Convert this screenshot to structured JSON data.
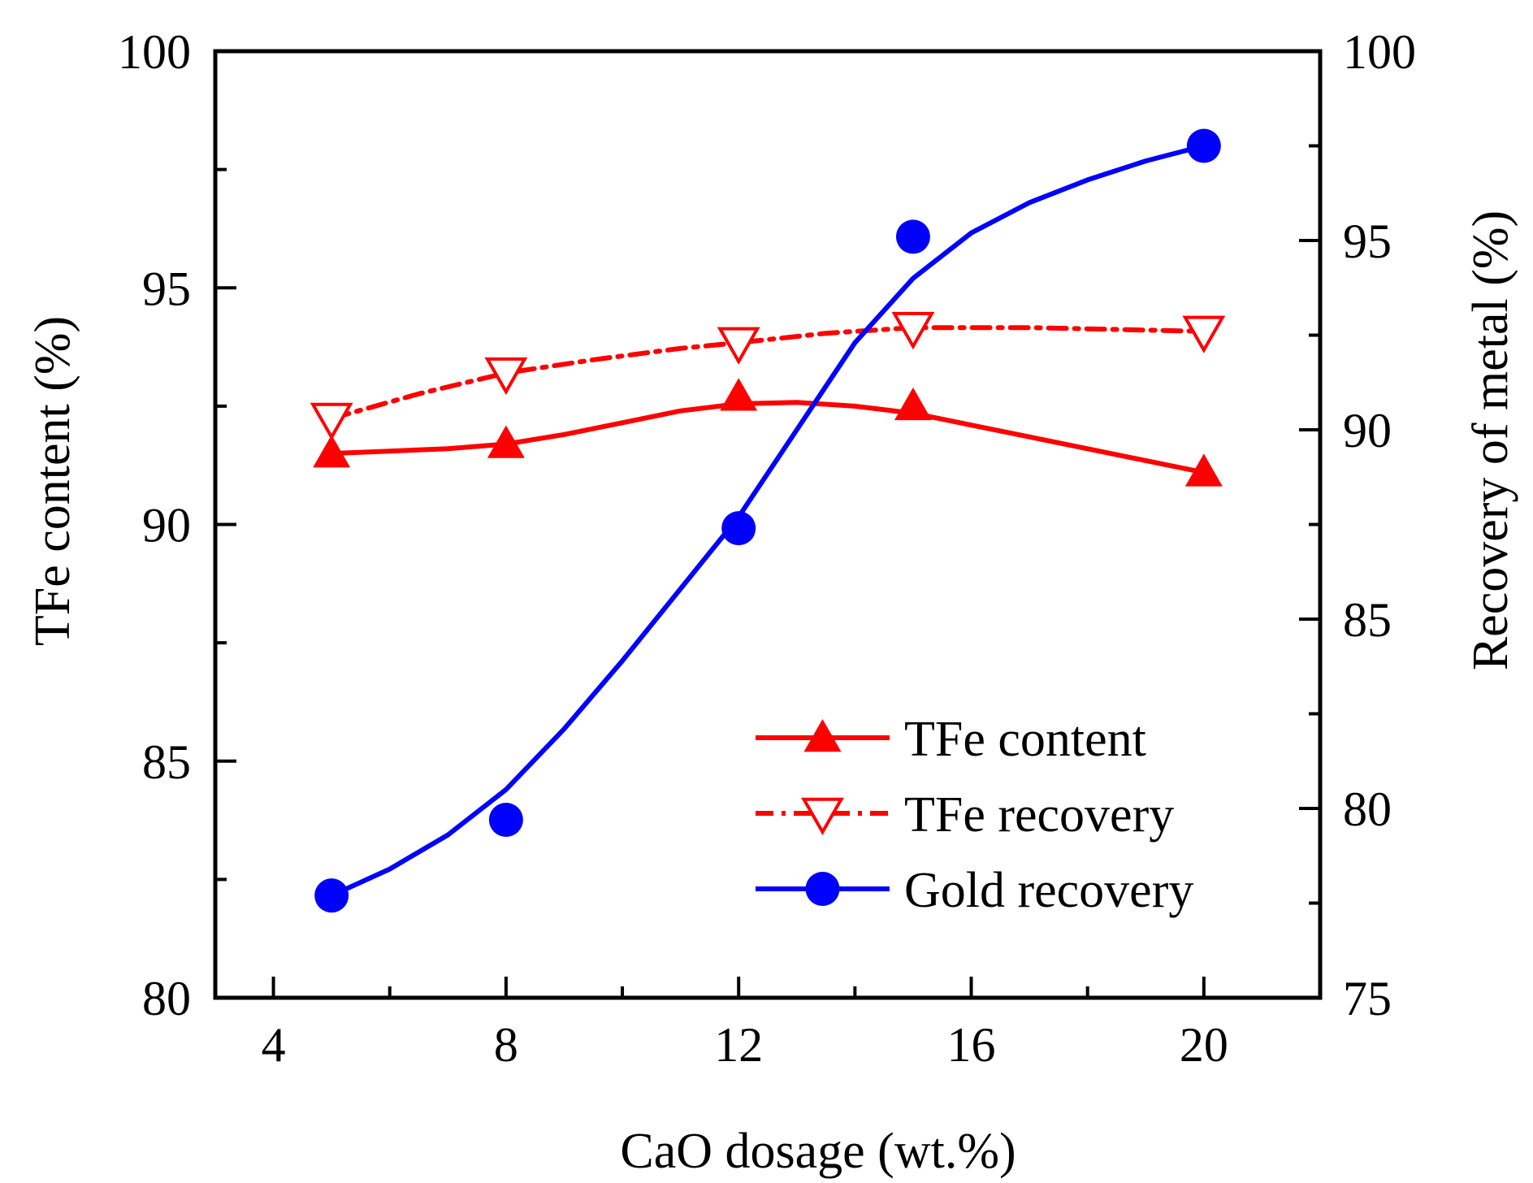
{
  "chart_data": {
    "type": "line",
    "x_axis": {
      "label": "CaO dosage (wt.%)",
      "range": [
        3,
        22
      ],
      "major_ticks": [
        4,
        8,
        12,
        16,
        20
      ],
      "tick_labels": [
        "4",
        "8",
        "12",
        "16",
        "20"
      ],
      "minor_ticks": [
        6,
        10,
        14,
        18,
        22
      ]
    },
    "y_left": {
      "label": "TFe content (%)",
      "range": [
        80,
        100
      ],
      "major_ticks": [
        80,
        85,
        90,
        95,
        100
      ],
      "tick_labels": [
        "80",
        "85",
        "90",
        "95",
        "100"
      ],
      "minor_ticks": [
        82.5,
        87.5,
        92.5,
        97.5
      ]
    },
    "y_right": {
      "label": "Recovery of metal (%)",
      "range": [
        75,
        100
      ],
      "major_ticks": [
        75,
        80,
        85,
        90,
        95,
        100
      ],
      "tick_labels": [
        "75",
        "80",
        "85",
        "90",
        "95",
        "100"
      ],
      "minor_ticks": [
        77.5,
        82.5,
        87.5,
        92.5,
        97.5
      ]
    },
    "grid": false,
    "legend_position": "bottom-right",
    "series": [
      {
        "name": "TFe content",
        "axis": "left",
        "color": "#ff0000",
        "line_style": "solid",
        "marker": "triangle-up",
        "x": [
          5,
          8,
          12,
          15,
          20
        ],
        "y": [
          91.5,
          91.7,
          92.7,
          92.5,
          91.1
        ],
        "fit_curve": [
          [
            5,
            91.5
          ],
          [
            6,
            91.55
          ],
          [
            7,
            91.6
          ],
          [
            8,
            91.7
          ],
          [
            9,
            91.9
          ],
          [
            10,
            92.15
          ],
          [
            11,
            92.4
          ],
          [
            12,
            92.55
          ],
          [
            13,
            92.58
          ],
          [
            14,
            92.5
          ],
          [
            15,
            92.35
          ],
          [
            16,
            92.1
          ],
          [
            17,
            91.85
          ],
          [
            18,
            91.6
          ],
          [
            19,
            91.35
          ],
          [
            20,
            91.1
          ]
        ]
      },
      {
        "name": "TFe recovery",
        "axis": "right",
        "color": "#ff0000",
        "line_style": "dash-dot",
        "marker": "triangle-down-open",
        "x": [
          5,
          8,
          12,
          15,
          20
        ],
        "y": [
          90.3,
          91.5,
          92.3,
          92.7,
          92.6
        ],
        "fit_curve": [
          [
            5,
            90.3
          ],
          [
            6.5,
            90.95
          ],
          [
            8,
            91.5
          ],
          [
            9.5,
            91.85
          ],
          [
            11,
            92.15
          ],
          [
            12,
            92.3
          ],
          [
            13.5,
            92.55
          ],
          [
            15,
            92.7
          ],
          [
            17,
            92.7
          ],
          [
            20,
            92.6
          ]
        ]
      },
      {
        "name": "Gold recovery",
        "axis": "right",
        "color": "#0000ff",
        "line_style": "solid",
        "marker": "circle",
        "x": [
          5,
          8,
          12,
          15,
          20
        ],
        "y": [
          77.7,
          79.7,
          87.4,
          95.1,
          97.5
        ],
        "fit_curve": [
          [
            5,
            77.7
          ],
          [
            6,
            78.4
          ],
          [
            7,
            79.3
          ],
          [
            8,
            80.5
          ],
          [
            9,
            82.1
          ],
          [
            10,
            83.9
          ],
          [
            11,
            85.8
          ],
          [
            12,
            87.7
          ],
          [
            13,
            90.0
          ],
          [
            14,
            92.3
          ],
          [
            15,
            94.0
          ],
          [
            16,
            95.2
          ],
          [
            17,
            96.0
          ],
          [
            18,
            96.6
          ],
          [
            19,
            97.1
          ],
          [
            20,
            97.5
          ]
        ]
      }
    ]
  }
}
